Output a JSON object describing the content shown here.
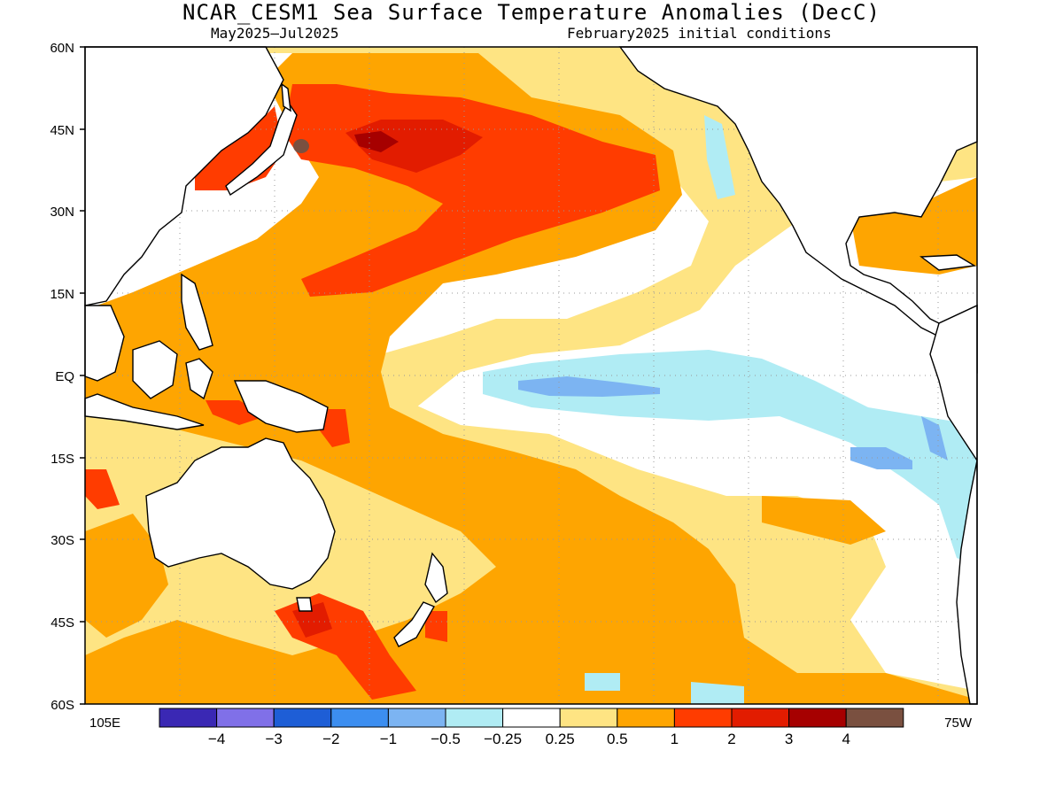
{
  "title": "NCAR_CESM1 Sea Surface Temperature Anomalies (DecC)",
  "subtitle_left": "May2025–Jul2025",
  "subtitle_right": "February2025 initial conditions",
  "lat_labels": [
    "60N",
    "45N",
    "30N",
    "15N",
    "EQ",
    "15S",
    "30S",
    "45S",
    "60S"
  ],
  "lon_labels": {
    "left": "105E",
    "right": "75W"
  },
  "legend": {
    "colors": [
      "#3a28b4",
      "#8070e8",
      "#1e5ed6",
      "#3c8ef0",
      "#7cb4f2",
      "#b0ecf4",
      "#ffffff",
      "#fee483",
      "#fea501",
      "#ff3c00",
      "#e21c00",
      "#a60000",
      "#7a5040"
    ],
    "labels": [
      "−4",
      "−3",
      "−2",
      "−1",
      "−0.5",
      "−0.25",
      "0.25",
      "0.5",
      "1",
      "2",
      "3",
      "4"
    ]
  },
  "palette": {
    "lt_yellow": "#fee483",
    "orange": "#fea501",
    "red": "#ff3c00",
    "dk_red": "#e21c00",
    "darkest_red": "#a60000",
    "brown": "#7a5040",
    "lt_cyan": "#b0ecf4",
    "lt_blue": "#7cb4f2"
  }
}
